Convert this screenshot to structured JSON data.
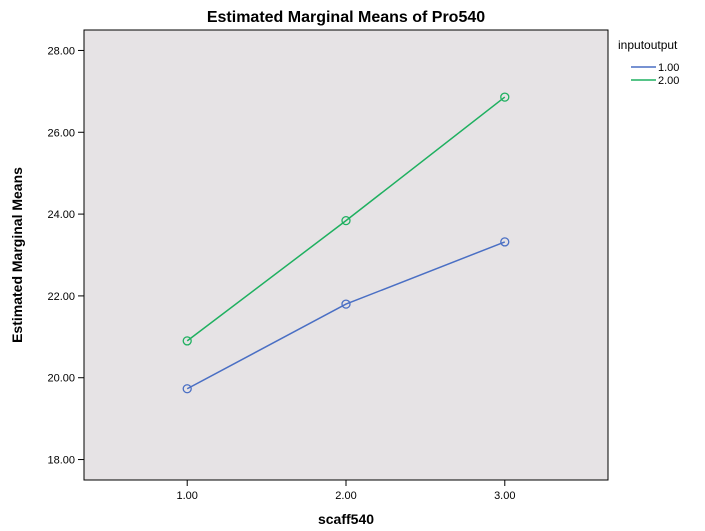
{
  "chart_data": {
    "type": "line",
    "title": "Estimated Marginal Means of Pro540",
    "xlabel": "scaff540",
    "ylabel": "Estimated Marginal Means",
    "categories": [
      "1.00",
      "2.00",
      "3.00"
    ],
    "x": [
      1,
      2,
      3
    ],
    "xlim": [
      0.35,
      3.65
    ],
    "ylim": [
      17.5,
      28.5
    ],
    "yticks": [
      18,
      20,
      22,
      24,
      26,
      28
    ],
    "ytick_labels": [
      "18.00",
      "20.00",
      "22.00",
      "24.00",
      "26.00",
      "28.00"
    ],
    "legend_title": "inputoutput",
    "legend_position": "top-right, outside plot",
    "plot_background": "#e6e3e5",
    "grid": false,
    "series": [
      {
        "name": "1.00",
        "color": "#4a6fc4",
        "values": [
          19.73,
          21.8,
          23.32
        ]
      },
      {
        "name": "2.00",
        "color": "#1fb060",
        "values": [
          20.9,
          23.84,
          26.86
        ]
      }
    ]
  }
}
